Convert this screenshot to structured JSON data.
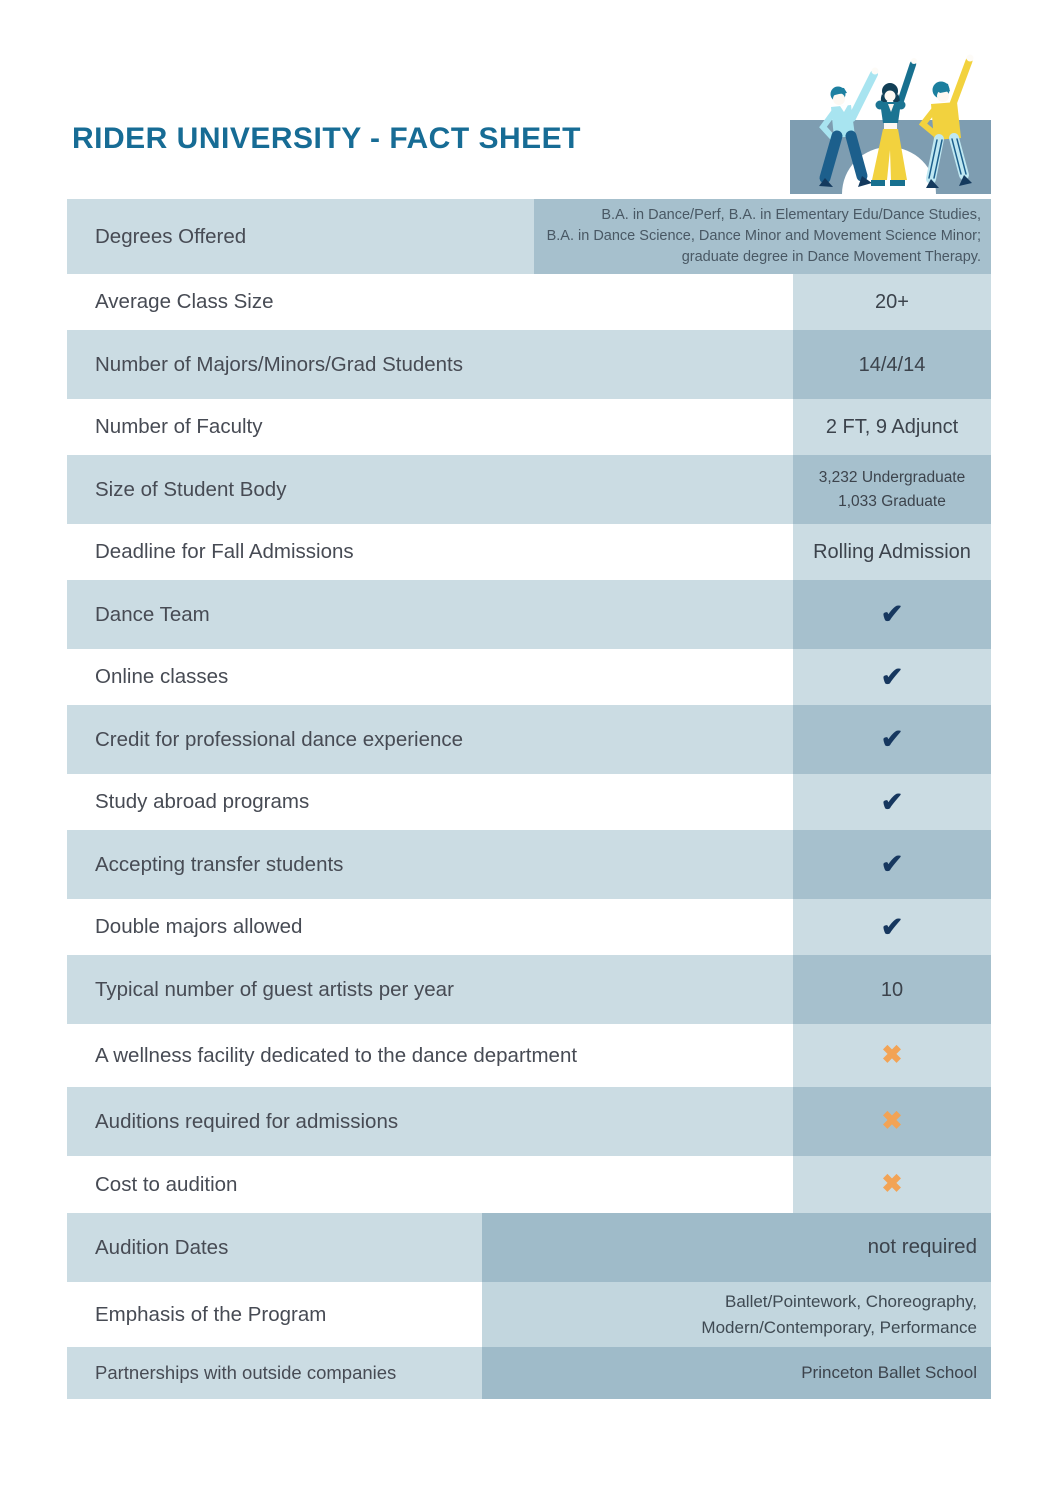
{
  "header": {
    "title": "RIDER UNIVERSITY - FACT SHEET"
  },
  "illustration": {
    "name": "three-dancers"
  },
  "icons": {
    "check": "✔",
    "cross": "✖"
  },
  "colors": {
    "title_teal": "#176C95",
    "row_light_blue": "#CBDCE3",
    "row_medium_blue": "#A6C0CD",
    "check_navy": "#16375F",
    "cross_orange": "#F2A355",
    "illustration_backdrop": "#7E9DB1"
  },
  "table": {
    "rows": [
      {
        "label": "Degrees Offered",
        "value": "B.A. in Dance/Perf, B.A. in Elementary Edu/Dance Studies,\nB.A. in Dance Science, Dance Minor and Movement Science Minor;\ngraduate degree in Dance Movement Therapy."
      },
      {
        "label": "Average Class Size",
        "value": "20+"
      },
      {
        "label": "Number of Majors/Minors/Grad Students",
        "value": "14/4/14"
      },
      {
        "label": "Number of Faculty",
        "value": "2 FT, 9 Adjunct"
      },
      {
        "label": "Size of Student Body",
        "value": "3,232 Undergraduate\n1,033 Graduate"
      },
      {
        "label": "Deadline for Fall Admissions",
        "value": "Rolling Admission"
      },
      {
        "label": "Dance Team",
        "icon": "check"
      },
      {
        "label": "Online classes",
        "icon": "check"
      },
      {
        "label": "Credit for professional dance experience",
        "icon": "check"
      },
      {
        "label": "Study abroad programs",
        "icon": "check"
      },
      {
        "label": "Accepting transfer students",
        "icon": "check"
      },
      {
        "label": "Double majors allowed",
        "icon": "check"
      },
      {
        "label": "Typical number of guest artists per year",
        "value": "10"
      },
      {
        "label": "A wellness facility dedicated to the dance department",
        "icon": "cross"
      },
      {
        "label": "Auditions required for admissions",
        "icon": "cross"
      },
      {
        "label": "Cost to audition",
        "icon": "cross"
      },
      {
        "label": "Audition Dates",
        "value": "not required"
      },
      {
        "label": "Emphasis of the Program",
        "value": "Ballet/Pointework, Choreography,\nModern/Contemporary, Performance"
      },
      {
        "label": "Partnerships with outside companies",
        "value": "Princeton Ballet School"
      }
    ]
  }
}
